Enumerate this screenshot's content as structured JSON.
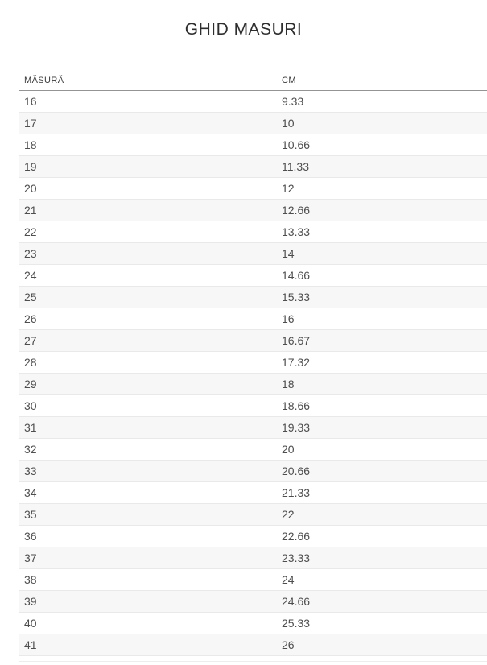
{
  "page": {
    "title": "GHID MASURI"
  },
  "table": {
    "columns": [
      {
        "label": "MĂSURĂ"
      },
      {
        "label": "CM"
      }
    ],
    "rows": [
      {
        "masura": "16",
        "cm": "9.33"
      },
      {
        "masura": "17",
        "cm": "10"
      },
      {
        "masura": "18",
        "cm": "10.66"
      },
      {
        "masura": "19",
        "cm": "11.33"
      },
      {
        "masura": "20",
        "cm": "12"
      },
      {
        "masura": "21",
        "cm": "12.66"
      },
      {
        "masura": "22",
        "cm": "13.33"
      },
      {
        "masura": "23",
        "cm": "14"
      },
      {
        "masura": "24",
        "cm": "14.66"
      },
      {
        "masura": "25",
        "cm": "15.33"
      },
      {
        "masura": "26",
        "cm": "16"
      },
      {
        "masura": "27",
        "cm": "16.67"
      },
      {
        "masura": "28",
        "cm": "17.32"
      },
      {
        "masura": "29",
        "cm": "18"
      },
      {
        "masura": "30",
        "cm": "18.66"
      },
      {
        "masura": "31",
        "cm": "19.33"
      },
      {
        "masura": "32",
        "cm": "20"
      },
      {
        "masura": "33",
        "cm": "20.66"
      },
      {
        "masura": "34",
        "cm": "21.33"
      },
      {
        "masura": "35",
        "cm": "22"
      },
      {
        "masura": "36",
        "cm": "22.66"
      },
      {
        "masura": "37",
        "cm": "23.33"
      },
      {
        "masura": "38",
        "cm": "24"
      },
      {
        "masura": "39",
        "cm": "24.66"
      },
      {
        "masura": "40",
        "cm": "25.33"
      },
      {
        "masura": "41",
        "cm": "26"
      }
    ]
  },
  "colors": {
    "stripe": "#f7f7f7",
    "row_border": "#e9e9e9",
    "header_border": "#949494",
    "cell_text": "#4e4e4e",
    "title_text": "#2e2e2e"
  }
}
